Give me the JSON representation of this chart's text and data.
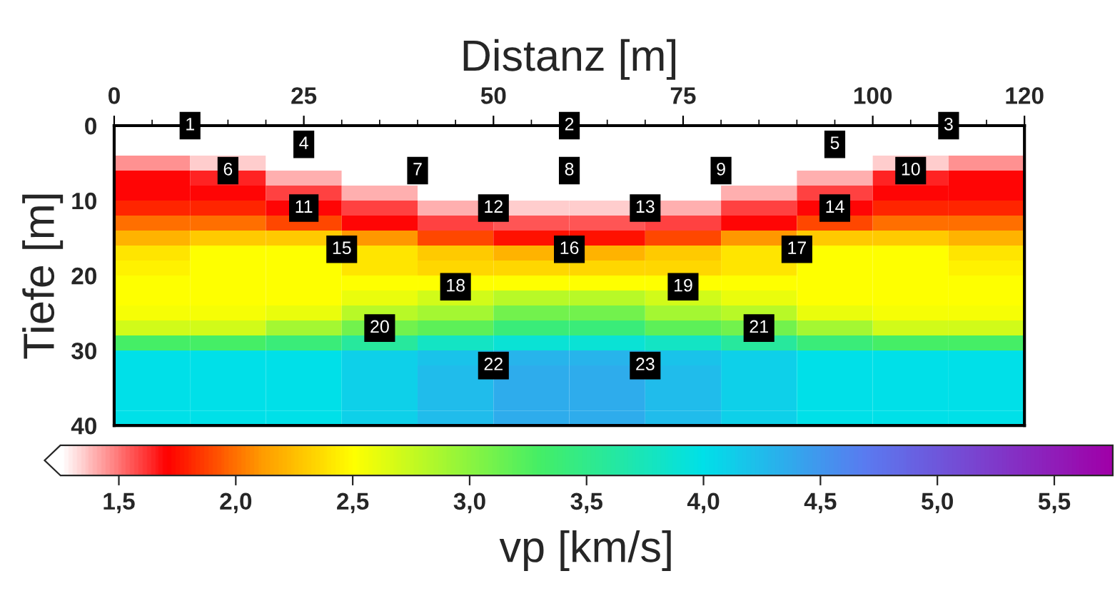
{
  "chart_data": {
    "type": "heatmap",
    "xlabel": "Distanz [m]",
    "ylabel": "Tiefe [m]",
    "clabel": "vp [km/s]",
    "xlim": [
      0,
      120
    ],
    "xticks": [
      0,
      25,
      50,
      75,
      100,
      120
    ],
    "ylim": [
      40,
      0
    ],
    "yticks": [
      0,
      10,
      20,
      30,
      40
    ],
    "clim": [
      1.25,
      5.75
    ],
    "cticks": [
      {
        "value": 1.5,
        "label": "1,5"
      },
      {
        "value": 2.0,
        "label": "2,0"
      },
      {
        "value": 2.5,
        "label": "2,5"
      },
      {
        "value": 3.0,
        "label": "3,0"
      },
      {
        "value": 3.5,
        "label": "3,5"
      },
      {
        "value": 4.0,
        "label": "4,0"
      },
      {
        "value": 4.5,
        "label": "4,5"
      },
      {
        "value": 5.0,
        "label": "5,0"
      },
      {
        "value": 5.5,
        "label": "5,5"
      }
    ],
    "cells": [
      [
        1.25,
        1.25,
        1.25,
        1.25,
        1.25,
        1.25,
        1.25,
        1.25,
        1.25,
        1.25,
        1.25,
        1.25
      ],
      [
        1.25,
        1.25,
        1.25,
        1.25,
        1.25,
        1.25,
        1.25,
        1.25,
        1.25,
        1.25,
        1.25,
        1.25
      ],
      [
        1.45,
        1.35,
        1.25,
        1.25,
        1.25,
        1.25,
        1.25,
        1.25,
        1.25,
        1.25,
        1.35,
        1.45
      ],
      [
        1.7,
        1.65,
        1.4,
        1.25,
        1.25,
        1.25,
        1.25,
        1.25,
        1.25,
        1.4,
        1.65,
        1.7
      ],
      [
        1.7,
        1.7,
        1.6,
        1.4,
        1.25,
        1.25,
        1.25,
        1.25,
        1.4,
        1.6,
        1.7,
        1.7
      ],
      [
        1.8,
        1.8,
        1.7,
        1.6,
        1.4,
        1.35,
        1.35,
        1.4,
        1.6,
        1.7,
        1.8,
        1.8
      ],
      [
        2.0,
        2.0,
        1.9,
        1.7,
        1.6,
        1.55,
        1.55,
        1.6,
        1.7,
        1.9,
        2.0,
        2.0
      ],
      [
        2.2,
        2.3,
        2.3,
        2.1,
        1.9,
        1.75,
        1.75,
        1.9,
        2.1,
        2.3,
        2.3,
        2.2
      ],
      [
        2.4,
        2.5,
        2.5,
        2.4,
        2.3,
        2.2,
        2.2,
        2.3,
        2.4,
        2.5,
        2.5,
        2.4
      ],
      [
        2.45,
        2.5,
        2.5,
        2.4,
        2.35,
        2.35,
        2.35,
        2.35,
        2.4,
        2.5,
        2.5,
        2.45
      ],
      [
        2.5,
        2.5,
        2.5,
        2.5,
        2.5,
        2.5,
        2.5,
        2.5,
        2.5,
        2.5,
        2.5,
        2.5
      ],
      [
        2.5,
        2.5,
        2.5,
        2.6,
        2.7,
        2.8,
        2.8,
        2.7,
        2.6,
        2.5,
        2.5,
        2.5
      ],
      [
        2.55,
        2.55,
        2.6,
        2.8,
        2.9,
        3.1,
        3.1,
        2.9,
        2.8,
        2.6,
        2.55,
        2.55
      ],
      [
        2.7,
        2.7,
        2.9,
        3.1,
        3.2,
        3.4,
        3.4,
        3.2,
        3.1,
        2.9,
        2.7,
        2.7
      ],
      [
        3.3,
        3.3,
        3.4,
        3.6,
        3.8,
        3.9,
        3.9,
        3.8,
        3.6,
        3.4,
        3.3,
        3.3
      ],
      [
        4.0,
        4.0,
        4.0,
        4.1,
        4.2,
        4.3,
        4.3,
        4.2,
        4.1,
        4.0,
        4.0,
        4.0
      ],
      [
        4.0,
        4.0,
        4.0,
        4.1,
        4.25,
        4.35,
        4.35,
        4.25,
        4.1,
        4.0,
        4.0,
        4.0
      ],
      [
        4.0,
        4.0,
        4.0,
        4.1,
        4.25,
        4.35,
        4.35,
        4.25,
        4.1,
        4.0,
        4.0,
        4.0
      ],
      [
        4.0,
        4.0,
        4.0,
        4.1,
        4.25,
        4.35,
        4.35,
        4.25,
        4.1,
        4.0,
        4.0,
        4.0
      ],
      [
        4.0,
        4.0,
        4.0,
        4.1,
        4.25,
        4.35,
        4.35,
        4.25,
        4.1,
        4.0,
        4.0,
        4.0
      ]
    ],
    "annotations": [
      {
        "text": "1",
        "x": 10,
        "y": 0
      },
      {
        "text": "2",
        "x": 60,
        "y": 0
      },
      {
        "text": "3",
        "x": 110,
        "y": 0
      },
      {
        "text": "4",
        "x": 25,
        "y": 2.5
      },
      {
        "text": "5",
        "x": 95,
        "y": 2.5
      },
      {
        "text": "6",
        "x": 15,
        "y": 6
      },
      {
        "text": "7",
        "x": 40,
        "y": 6
      },
      {
        "text": "8",
        "x": 60,
        "y": 6
      },
      {
        "text": "9",
        "x": 80,
        "y": 6
      },
      {
        "text": "10",
        "x": 105,
        "y": 6
      },
      {
        "text": "11",
        "x": 25,
        "y": 11
      },
      {
        "text": "12",
        "x": 50,
        "y": 11
      },
      {
        "text": "13",
        "x": 70,
        "y": 11
      },
      {
        "text": "14",
        "x": 95,
        "y": 11
      },
      {
        "text": "15",
        "x": 30,
        "y": 16.5
      },
      {
        "text": "16",
        "x": 60,
        "y": 16.5
      },
      {
        "text": "17",
        "x": 90,
        "y": 16.5
      },
      {
        "text": "18",
        "x": 45,
        "y": 21.5
      },
      {
        "text": "19",
        "x": 75,
        "y": 21.5
      },
      {
        "text": "20",
        "x": 35,
        "y": 27
      },
      {
        "text": "21",
        "x": 85,
        "y": 27
      },
      {
        "text": "22",
        "x": 50,
        "y": 32
      },
      {
        "text": "23",
        "x": 70,
        "y": 32
      }
    ]
  }
}
